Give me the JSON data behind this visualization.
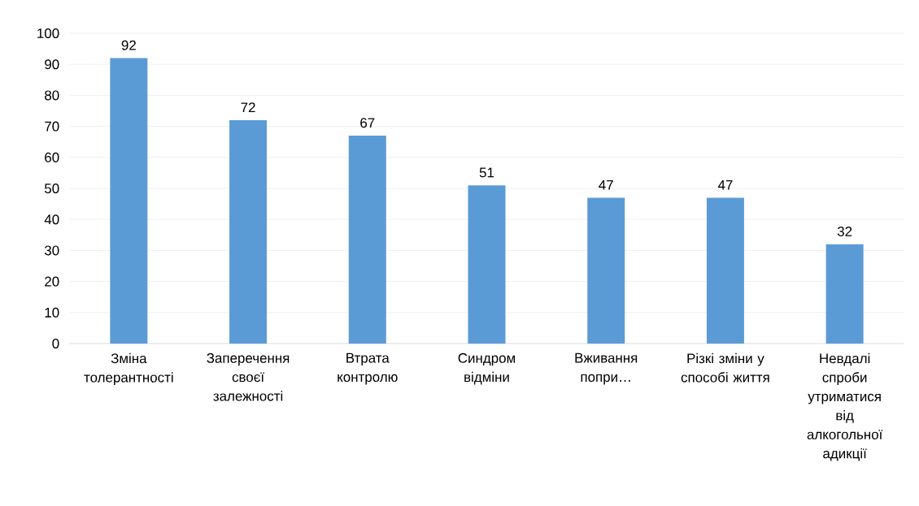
{
  "chart_data": {
    "type": "bar",
    "categories": [
      "Зміна толерантності",
      "Заперечення своєї залежності",
      "Втрата контролю",
      "Синдром відміни",
      "Вживання попри…",
      "Різкі зміни у способі життя",
      "Невдалі спроби утриматися від алкогольної адикції"
    ],
    "values": [
      92,
      72,
      67,
      51,
      47,
      47,
      32
    ],
    "color": "#5b9bd5",
    "ylim": [
      0,
      100
    ],
    "yticks": [
      0,
      10,
      20,
      30,
      40,
      50,
      60,
      70,
      80,
      90,
      100
    ],
    "grid": "y",
    "data_labels": true
  }
}
